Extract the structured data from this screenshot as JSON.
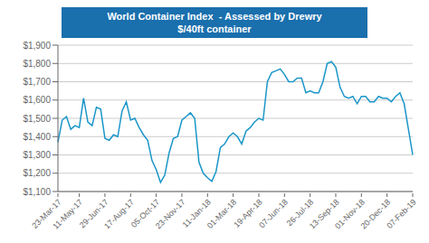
{
  "chart_data": {
    "type": "line",
    "title": "World Container Index  - Assessed by Drewry",
    "subtitle": "$/40ft container",
    "color": "#1a96c8",
    "grid": true,
    "categories": [
      "23-Mar-17",
      null,
      null,
      null,
      null,
      "11-May-17",
      null,
      null,
      null,
      null,
      null,
      "29-Jun-17",
      null,
      null,
      null,
      null,
      null,
      "17-Aug-17",
      null,
      null,
      null,
      null,
      null,
      "05-Oct-17",
      null,
      null,
      null,
      null,
      null,
      "23-Nov-17",
      null,
      null,
      null,
      null,
      null,
      "11-Jan-18",
      null,
      null,
      null,
      null,
      null,
      "01-Mar-18",
      null,
      null,
      null,
      null,
      null,
      "19-Apr-18",
      null,
      null,
      null,
      null,
      null,
      "07-Jun-18",
      null,
      null,
      null,
      null,
      null,
      "26-Jul-18",
      null,
      null,
      null,
      null,
      null,
      "13-Sep-18",
      null,
      null,
      null,
      null,
      null,
      "01-Nov-18",
      null,
      null,
      null,
      null,
      null,
      "20-Dec-18",
      null,
      null,
      null,
      null,
      null,
      "07-Feb-19"
    ],
    "values": [
      1370,
      1490,
      1510,
      1440,
      1460,
      1450,
      1610,
      1480,
      1460,
      1560,
      1550,
      1390,
      1380,
      1410,
      1400,
      1540,
      1590,
      1490,
      1500,
      1450,
      1410,
      1380,
      1270,
      1220,
      1150,
      1190,
      1310,
      1390,
      1400,
      1490,
      1510,
      1530,
      1500,
      1260,
      1200,
      1175,
      1155,
      1210,
      1340,
      1360,
      1400,
      1420,
      1400,
      1360,
      1430,
      1450,
      1480,
      1500,
      1490,
      1700,
      1750,
      1760,
      1770,
      1740,
      1700,
      1700,
      1720,
      1720,
      1640,
      1650,
      1640,
      1640,
      1700,
      1800,
      1810,
      1780,
      1670,
      1620,
      1610,
      1620,
      1580,
      1620,
      1620,
      1590,
      1590,
      1620,
      1610,
      1610,
      1590,
      1620,
      1640,
      1580,
      1440,
      1300
    ],
    "ylim": [
      1100,
      1900
    ],
    "yticks": [
      {
        "value": 1100,
        "label": "$1,100"
      },
      {
        "value": 1200,
        "label": "$1,200"
      },
      {
        "value": 1300,
        "label": "$1,300"
      },
      {
        "value": 1400,
        "label": "$1,400"
      },
      {
        "value": 1500,
        "label": "$1,500"
      },
      {
        "value": 1600,
        "label": "$1,600"
      },
      {
        "value": 1700,
        "label": "$1,700"
      },
      {
        "value": 1800,
        "label": "$1,800"
      },
      {
        "value": 1900,
        "label": "$1,900"
      }
    ]
  }
}
